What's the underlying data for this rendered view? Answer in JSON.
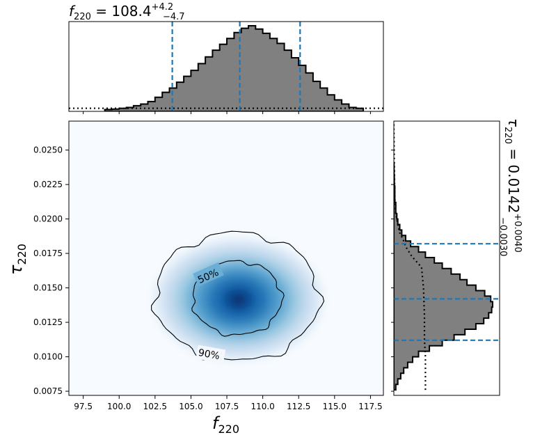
{
  "chart_data": {
    "type": "heatmap",
    "title": "",
    "x_title": {
      "var": "f",
      "sub": "220",
      "value": "108.4",
      "plus": "+4.2",
      "minus": "−4.7"
    },
    "y_title": {
      "var": "τ",
      "sub": "220",
      "value": "0.0142",
      "plus": "+0.0040",
      "minus": "−0.0030"
    },
    "xlabel": {
      "var": "f",
      "sub": "220"
    },
    "ylabel": {
      "var": "τ",
      "sub": "220"
    },
    "xlim": [
      96.5,
      118.4
    ],
    "ylim": [
      0.0072,
      0.0271
    ],
    "xticks": [
      "97.5",
      "100.0",
      "102.5",
      "105.0",
      "107.5",
      "110.0",
      "112.5",
      "115.0",
      "117.5"
    ],
    "yticks": [
      "0.0075",
      "0.0100",
      "0.0125",
      "0.0150",
      "0.0175",
      "0.0200",
      "0.0225",
      "0.0250"
    ],
    "density_peak": {
      "x": 108.4,
      "y": 0.01385
    },
    "contours": [
      {
        "label": "50%",
        "level": 0.5
      },
      {
        "label": "90%",
        "level": 0.9
      }
    ],
    "colormap": "Blues",
    "hist_color": "#808080",
    "quantile_line_color": "#1f77b4",
    "x_marginal": {
      "quantiles": [
        103.7,
        108.4,
        112.6
      ],
      "prior_level": 0.02,
      "bin_edges": [
        99.0,
        99.5,
        100.0,
        100.5,
        101.0,
        101.5,
        102.0,
        102.5,
        103.0,
        103.5,
        104.0,
        104.5,
        105.0,
        105.5,
        106.0,
        106.5,
        107.0,
        107.5,
        108.0,
        108.5,
        109.0,
        109.5,
        110.0,
        110.5,
        111.0,
        111.5,
        112.0,
        112.5,
        113.0,
        113.5,
        114.0,
        114.5,
        115.0,
        115.5,
        116.0,
        116.5,
        117.0
      ],
      "density": [
        0.005,
        0.01,
        0.02,
        0.03,
        0.05,
        0.07,
        0.1,
        0.15,
        0.21,
        0.26,
        0.33,
        0.4,
        0.47,
        0.55,
        0.63,
        0.71,
        0.78,
        0.85,
        0.92,
        0.97,
        1.0,
        0.96,
        0.91,
        0.85,
        0.79,
        0.71,
        0.62,
        0.53,
        0.44,
        0.34,
        0.26,
        0.18,
        0.12,
        0.07,
        0.03,
        0.02
      ]
    },
    "y_marginal": {
      "quantiles": [
        0.0112,
        0.0142,
        0.0182
      ],
      "bin_edges": [
        0.0076,
        0.008,
        0.0084,
        0.0088,
        0.0092,
        0.0096,
        0.01,
        0.0104,
        0.0108,
        0.0112,
        0.0116,
        0.012,
        0.0124,
        0.0128,
        0.0132,
        0.0136,
        0.014,
        0.0144,
        0.0148,
        0.0152,
        0.0156,
        0.016,
        0.0164,
        0.0168,
        0.0172,
        0.0176,
        0.018,
        0.0184,
        0.0188,
        0.0192,
        0.0196,
        0.02,
        0.0204,
        0.0208,
        0.0212,
        0.0216,
        0.022,
        0.0224,
        0.0228,
        0.0232,
        0.0236,
        0.024
      ],
      "density": [
        0.02,
        0.04,
        0.07,
        0.1,
        0.14,
        0.19,
        0.25,
        0.36,
        0.49,
        0.61,
        0.72,
        0.83,
        0.91,
        0.96,
        0.99,
        1.0,
        0.98,
        0.92,
        0.83,
        0.74,
        0.67,
        0.58,
        0.49,
        0.41,
        0.32,
        0.25,
        0.17,
        0.12,
        0.08,
        0.06,
        0.04,
        0.03,
        0.02,
        0.02,
        0.01,
        0.01,
        0.01,
        0.005,
        0.005,
        0.003,
        0.002
      ],
      "prior_profile": [
        [
          0.0076,
          0.32
        ],
        [
          0.009,
          0.32
        ],
        [
          0.01,
          0.32
        ],
        [
          0.0112,
          0.31
        ],
        [
          0.013,
          0.31
        ],
        [
          0.015,
          0.3
        ],
        [
          0.0165,
          0.28
        ],
        [
          0.0173,
          0.18
        ],
        [
          0.018,
          0.12
        ],
        [
          0.0184,
          0.1
        ],
        [
          0.019,
          0.06
        ],
        [
          0.0196,
          0.04
        ],
        [
          0.0204,
          0.02
        ],
        [
          0.0215,
          0.01
        ],
        [
          0.024,
          0.005
        ],
        [
          0.0271,
          0.0
        ]
      ]
    }
  }
}
